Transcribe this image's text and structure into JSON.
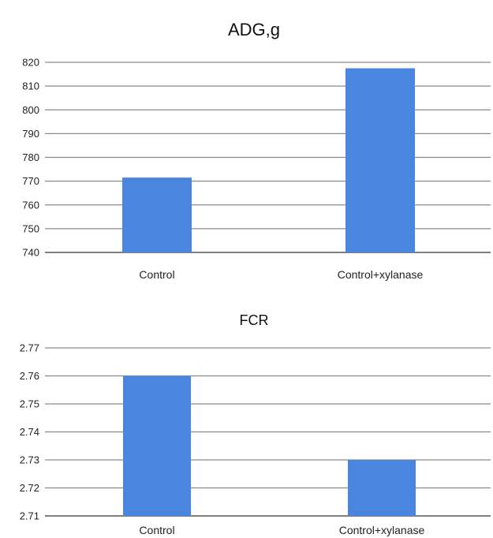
{
  "chart_data": [
    {
      "type": "bar",
      "title": "ADG,g",
      "categories": [
        "Control",
        "Control+xylanase"
      ],
      "values": [
        771.5,
        817.5
      ],
      "ylim": [
        740,
        820
      ],
      "yticks": [
        "740",
        "750",
        "760",
        "770",
        "780",
        "790",
        "800",
        "810",
        "820"
      ],
      "grid": true,
      "bar_color": "#4a86e0"
    },
    {
      "type": "bar",
      "title": "FCR",
      "categories": [
        "Control",
        "Control+xylanase"
      ],
      "values": [
        2.76,
        2.73
      ],
      "ylim": [
        2.71,
        2.77
      ],
      "yticks": [
        "2.71",
        "2.72",
        "2.73",
        "2.74",
        "2.75",
        "2.76",
        "2.77"
      ],
      "grid": true,
      "bar_color": "#4a86e0"
    }
  ]
}
